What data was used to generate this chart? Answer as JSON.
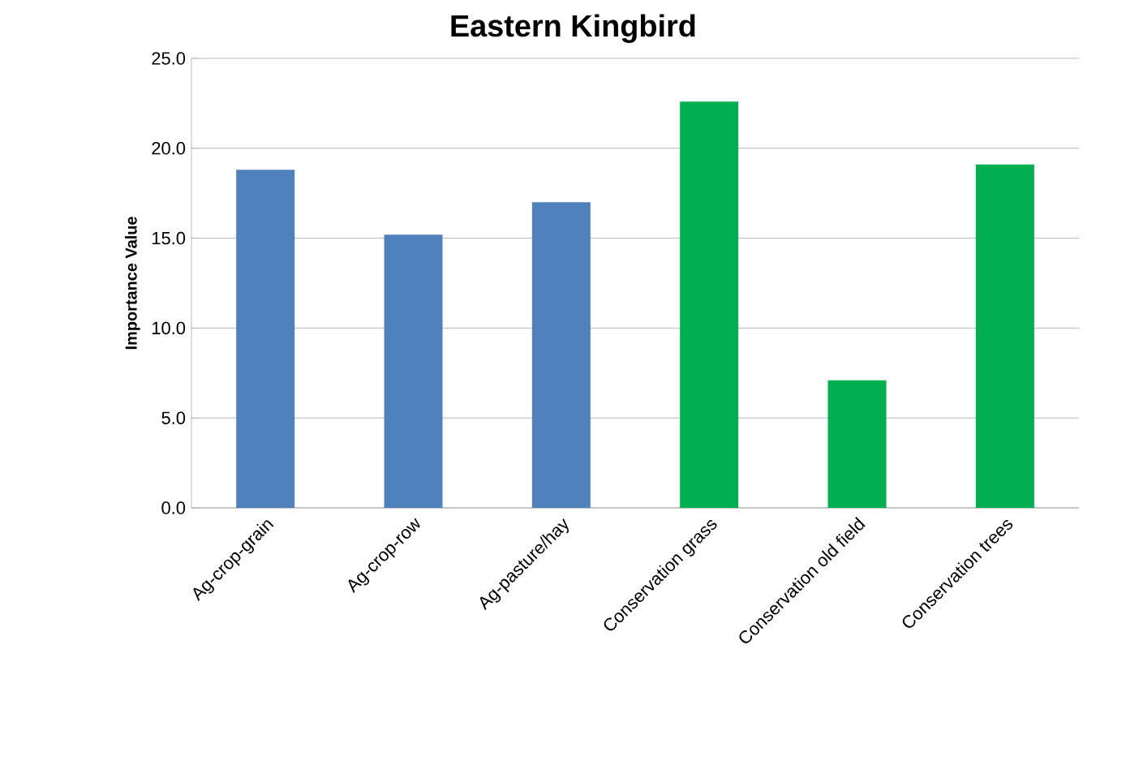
{
  "chart_data": {
    "type": "bar",
    "title": "Eastern Kingbird",
    "ylabel": "Importance Value",
    "categories": [
      "Ag-crop-grain",
      "Ag-crop-row",
      "Ag-pasture/hay",
      "Conservation grass",
      "Conservation old field",
      "Conservation trees"
    ],
    "values": [
      18.8,
      15.2,
      17.0,
      22.6,
      7.1,
      19.1
    ],
    "colors": [
      "#4f81bd",
      "#4f81bd",
      "#4f81bd",
      "#00b050",
      "#00b050",
      "#00b050"
    ],
    "ylim": [
      0,
      25
    ],
    "yticks": [
      {
        "value": 0,
        "label": "0.0"
      },
      {
        "value": 5,
        "label": "5.0"
      },
      {
        "value": 10,
        "label": "10.0"
      },
      {
        "value": 15,
        "label": "15.0"
      },
      {
        "value": 20,
        "label": "20.0"
      },
      {
        "value": 25,
        "label": "25.0"
      }
    ],
    "grid": "y"
  }
}
